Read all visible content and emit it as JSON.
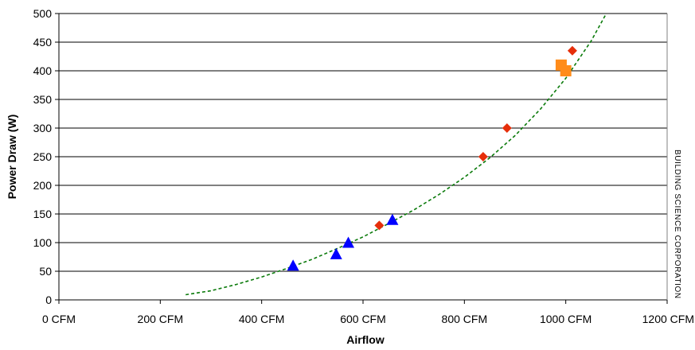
{
  "chart_data": {
    "type": "scatter",
    "title": "",
    "xlabel": "Airflow",
    "ylabel": "Power Draw (W)",
    "xlim": [
      0,
      1200
    ],
    "ylim": [
      0,
      500
    ],
    "x_ticks": [
      0,
      200,
      400,
      600,
      800,
      1000,
      1200
    ],
    "x_tick_labels": [
      "0 CFM",
      "200 CFM",
      "400 CFM",
      "600 CFM",
      "800 CFM",
      "1000 CFM",
      "1200 CFM"
    ],
    "y_ticks": [
      0,
      50,
      100,
      150,
      200,
      250,
      300,
      350,
      400,
      450,
      500
    ],
    "y_tick_labels": [
      "0",
      "50",
      "100",
      "150",
      "200",
      "250",
      "300",
      "350",
      "400",
      "450",
      "500"
    ],
    "grid": "horizontal",
    "legend": "none",
    "series": [
      {
        "marker": "triangle",
        "color": "#0000ff",
        "points": [
          {
            "x": 462,
            "y": 60
          },
          {
            "x": 547,
            "y": 80
          },
          {
            "x": 571,
            "y": 100
          },
          {
            "x": 658,
            "y": 140
          }
        ]
      },
      {
        "marker": "diamond",
        "color": "#e62e0a",
        "points": [
          {
            "x": 632,
            "y": 130
          },
          {
            "x": 837,
            "y": 250
          },
          {
            "x": 884,
            "y": 300
          },
          {
            "x": 1013,
            "y": 435
          }
        ]
      },
      {
        "marker": "square",
        "color": "#ff8c1a",
        "points": [
          {
            "x": 991,
            "y": 410
          },
          {
            "x": 1000,
            "y": 400
          }
        ]
      }
    ],
    "trendline": {
      "style": "dashed",
      "color": "#0a7a0a",
      "points": [
        {
          "x": 250,
          "y": 9
        },
        {
          "x": 300,
          "y": 16
        },
        {
          "x": 350,
          "y": 27
        },
        {
          "x": 400,
          "y": 40
        },
        {
          "x": 450,
          "y": 55
        },
        {
          "x": 500,
          "y": 71
        },
        {
          "x": 550,
          "y": 90
        },
        {
          "x": 600,
          "y": 110
        },
        {
          "x": 650,
          "y": 133
        },
        {
          "x": 700,
          "y": 157
        },
        {
          "x": 750,
          "y": 184
        },
        {
          "x": 800,
          "y": 214
        },
        {
          "x": 850,
          "y": 248
        },
        {
          "x": 900,
          "y": 287
        },
        {
          "x": 950,
          "y": 333
        },
        {
          "x": 1000,
          "y": 387
        },
        {
          "x": 1050,
          "y": 452
        },
        {
          "x": 1080,
          "y": 500
        }
      ]
    }
  },
  "watermark": "BUILDING SCIENCE CORPORATION"
}
